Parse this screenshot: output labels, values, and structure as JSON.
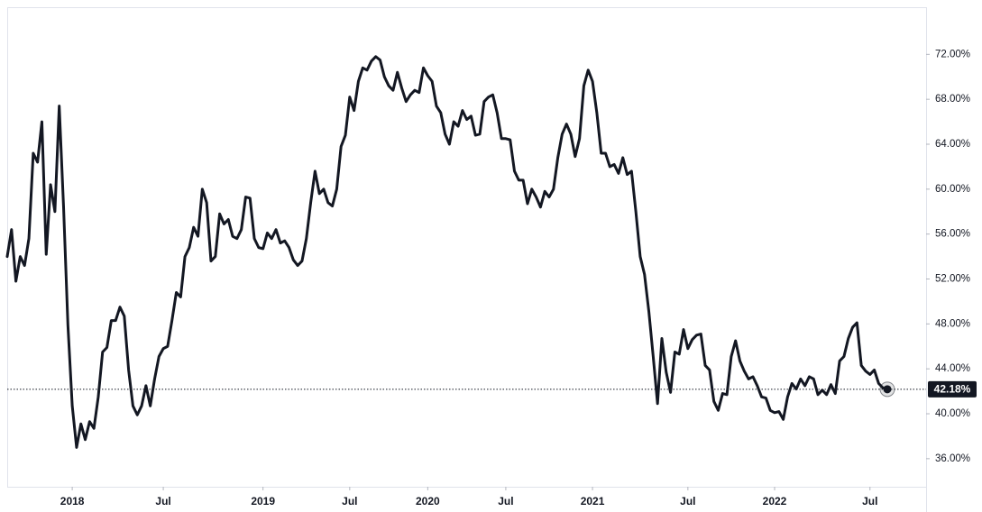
{
  "chart_data": {
    "type": "line",
    "categories": [
      null,
      null,
      null,
      null,
      null,
      null,
      null,
      null,
      null,
      null,
      null,
      null,
      null,
      null,
      null,
      "2018",
      null,
      null,
      null,
      null,
      null,
      null,
      null,
      null,
      null,
      null,
      null,
      null,
      null,
      null,
      null,
      null,
      null,
      null,
      null,
      null,
      "Jul",
      null,
      null,
      null,
      null,
      null,
      null,
      null,
      null,
      null,
      null,
      null,
      null,
      null,
      null,
      null,
      null,
      null,
      null,
      null,
      null,
      null,
      null,
      "2019",
      null,
      null,
      null,
      null,
      null,
      null,
      null,
      null,
      null,
      null,
      null,
      null,
      null,
      null,
      null,
      null,
      null,
      null,
      null,
      "Jul",
      null,
      null,
      null,
      null,
      null,
      null,
      null,
      null,
      null,
      null,
      null,
      null,
      null,
      null,
      null,
      null,
      null,
      "2020",
      null,
      null,
      null,
      null,
      null,
      null,
      null,
      null,
      null,
      null,
      null,
      null,
      null,
      null,
      null,
      null,
      null,
      "Jul",
      null,
      null,
      null,
      null,
      null,
      null,
      null,
      null,
      null,
      null,
      null,
      null,
      null,
      null,
      null,
      null,
      null,
      null,
      null,
      "2021",
      null,
      null,
      null,
      null,
      null,
      null,
      null,
      null,
      null,
      null,
      null,
      null,
      null,
      null,
      null,
      null,
      null,
      null,
      null,
      null,
      null,
      "Jul",
      null,
      null,
      null,
      null,
      null,
      null,
      null,
      null,
      null,
      null,
      null,
      null,
      null,
      null,
      null,
      null,
      null,
      null,
      null,
      "2022",
      null,
      null,
      null,
      null,
      null,
      null,
      null,
      null,
      null,
      null,
      null,
      null,
      null,
      null,
      null,
      null,
      null,
      null,
      null,
      null,
      null,
      "Jul",
      null,
      null,
      null,
      null
    ],
    "series": [
      {
        "color": "#131722",
        "values": [
          54.0,
          56.4,
          51.8,
          54.0,
          53.2,
          55.6,
          63.2,
          62.4,
          66.0,
          54.2,
          60.4,
          58.0,
          67.4,
          58.4,
          47.9,
          40.7,
          37.0,
          39.1,
          37.7,
          39.3,
          38.7,
          41.5,
          45.5,
          45.9,
          48.3,
          48.3,
          49.5,
          48.7,
          43.9,
          40.7,
          39.9,
          40.7,
          42.5,
          40.7,
          43.1,
          45.1,
          45.8,
          46.0,
          48.3,
          50.8,
          50.4,
          54.0,
          54.8,
          56.6,
          55.8,
          60.0,
          58.8,
          53.6,
          54.0,
          57.8,
          56.9,
          57.3,
          55.8,
          55.6,
          56.4,
          59.3,
          59.2,
          55.6,
          54.8,
          54.7,
          56.1,
          55.6,
          56.4,
          55.2,
          55.4,
          54.8,
          53.7,
          53.2,
          53.6,
          55.6,
          58.8,
          61.6,
          59.6,
          60.0,
          58.8,
          58.5,
          60.0,
          63.8,
          64.8,
          68.2,
          67.0,
          69.6,
          70.8,
          70.6,
          71.4,
          71.8,
          71.5,
          70.0,
          69.2,
          68.8,
          70.4,
          69.0,
          67.8,
          68.4,
          68.8,
          68.6,
          70.8,
          70.1,
          69.6,
          67.4,
          66.8,
          64.9,
          64.0,
          66.0,
          65.6,
          67.0,
          66.2,
          66.5,
          64.8,
          64.9,
          67.8,
          68.2,
          68.4,
          66.8,
          64.5,
          64.5,
          64.4,
          61.6,
          60.8,
          60.8,
          58.7,
          60.0,
          59.3,
          58.4,
          59.8,
          59.3,
          60.0,
          62.8,
          64.9,
          65.8,
          64.9,
          62.9,
          64.5,
          69.2,
          70.6,
          69.6,
          66.8,
          63.2,
          63.2,
          62.0,
          62.2,
          61.4,
          62.8,
          61.3,
          61.6,
          58.0,
          54.0,
          52.4,
          49.1,
          45.1,
          40.9,
          46.7,
          43.7,
          41.9,
          45.5,
          45.3,
          47.5,
          45.8,
          46.6,
          47.0,
          47.1,
          44.3,
          43.9,
          41.1,
          40.3,
          41.8,
          41.7,
          45.1,
          46.5,
          44.7,
          43.8,
          43.1,
          43.3,
          42.5,
          41.5,
          41.4,
          40.3,
          40.1,
          40.2,
          39.5,
          41.5,
          42.7,
          42.2,
          43.1,
          42.5,
          43.3,
          43.1,
          41.7,
          42.1,
          41.7,
          42.6,
          41.8,
          44.7,
          45.1,
          46.7,
          47.7,
          48.1,
          44.3,
          43.8,
          43.5,
          43.9,
          42.7,
          42.3,
          42.18
        ]
      }
    ],
    "last_value": {
      "value": 42.18,
      "label": "42.18%"
    },
    "ylim": [
      33.5,
      76.2
    ],
    "yticks": [
      {
        "value": 36,
        "label": "36.00%"
      },
      {
        "value": 40,
        "label": "40.00%"
      },
      {
        "value": 44,
        "label": "44.00%"
      },
      {
        "value": 48,
        "label": "48.00%"
      },
      {
        "value": 52,
        "label": "52.00%"
      },
      {
        "value": 56,
        "label": "56.00%"
      },
      {
        "value": 60,
        "label": "60.00%"
      },
      {
        "value": 64,
        "label": "64.00%"
      },
      {
        "value": 68,
        "label": "68.00%"
      },
      {
        "value": 72,
        "label": "72.00%"
      }
    ],
    "grid": false
  }
}
